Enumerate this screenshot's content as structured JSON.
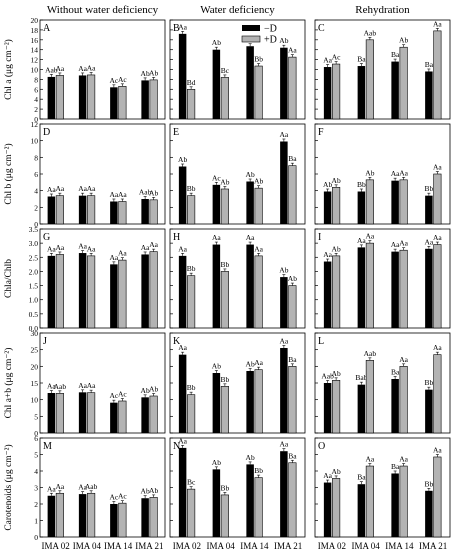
{
  "columns": [
    "Without water deficiency",
    "Water deficiency",
    "Rehydration"
  ],
  "legend": [
    {
      "label": "−D",
      "color": "#000000"
    },
    {
      "label": "+D",
      "color": "#b3b3b3"
    }
  ],
  "categories": [
    "IMA 02",
    "IMA 04",
    "IMA 14",
    "IMA 21"
  ],
  "rows": [
    {
      "ylabel": "Chl a (μg cm⁻²)",
      "ylim": [
        0,
        20
      ],
      "yticks": [
        0,
        2,
        4,
        6,
        8,
        10,
        12,
        14,
        16,
        18,
        20
      ],
      "panels": [
        "A",
        "B",
        "C"
      ]
    },
    {
      "ylabel": "Chl b (μg cm⁻²)",
      "ylim": [
        0,
        12
      ],
      "yticks": [
        0,
        2,
        4,
        6,
        8,
        10,
        12
      ],
      "panels": [
        "D",
        "E",
        "F"
      ]
    },
    {
      "ylabel": "Chla/Chlb",
      "ylim": [
        0,
        3.5
      ],
      "yticks": [
        0.0,
        0.5,
        1.0,
        1.5,
        2.0,
        2.5,
        3.0,
        3.5
      ],
      "panels": [
        "G",
        "H",
        "I"
      ]
    },
    {
      "ylabel": "Chl a+b (μg cm⁻²)",
      "ylim": [
        0,
        30
      ],
      "yticks": [
        0,
        5,
        10,
        15,
        20,
        25,
        30
      ],
      "panels": [
        "J",
        "K",
        "L"
      ]
    },
    {
      "ylabel": "Carotenoids (μg cm⁻²)",
      "ylim": [
        0,
        6
      ],
      "yticks": [
        0,
        1,
        2,
        3,
        4,
        5,
        6
      ],
      "panels": [
        "M",
        "N",
        "O"
      ]
    }
  ],
  "chart_data": [
    {
      "type": "bar",
      "panel": "A",
      "series": [
        {
          "name": "−D",
          "values": [
            8.5,
            8.8,
            6.4,
            7.8
          ],
          "labels": [
            "Aab",
            "Aa",
            "Ac",
            "Ab"
          ]
        },
        {
          "name": "+D",
          "values": [
            8.8,
            8.9,
            6.6,
            7.9
          ],
          "labels": [
            "Aa",
            "Aa",
            "Ac",
            "Ab"
          ]
        }
      ]
    },
    {
      "type": "bar",
      "panel": "B",
      "series": [
        {
          "name": "−D",
          "values": [
            17.2,
            14.0,
            14.7,
            14.4
          ],
          "labels": [
            "Aa",
            "Ab",
            "Ab",
            "Ab"
          ]
        },
        {
          "name": "+D",
          "values": [
            6.0,
            8.4,
            10.7,
            12.5
          ],
          "labels": [
            "Bd",
            "Bc",
            "Bb",
            "Aa"
          ]
        }
      ]
    },
    {
      "type": "bar",
      "panel": "C",
      "series": [
        {
          "name": "−D",
          "values": [
            10.5,
            10.7,
            11.6,
            9.6
          ],
          "labels": [
            "Aa",
            "Ba",
            "Ba",
            "Ba"
          ]
        },
        {
          "name": "+D",
          "values": [
            11.1,
            16.0,
            14.5,
            17.8
          ],
          "labels": [
            "Ac",
            "Aab",
            "Ab",
            "Aa"
          ]
        }
      ]
    },
    {
      "type": "bar",
      "panel": "D",
      "series": [
        {
          "name": "−D",
          "values": [
            3.3,
            3.4,
            2.7,
            3.0
          ],
          "labels": [
            "Aa",
            "Aa",
            "Aa",
            "Aab"
          ]
        },
        {
          "name": "+D",
          "values": [
            3.4,
            3.4,
            2.7,
            2.9
          ],
          "labels": [
            "Aa",
            "Aa",
            "Aa",
            "Ab"
          ]
        }
      ]
    },
    {
      "type": "bar",
      "panel": "E",
      "series": [
        {
          "name": "−D",
          "values": [
            6.9,
            4.7,
            5.1,
            9.9
          ],
          "labels": [
            "Ab",
            "Ac",
            "Ab",
            "Aa"
          ]
        },
        {
          "name": "+D",
          "values": [
            3.4,
            4.2,
            4.3,
            7.0
          ],
          "labels": [
            "Bb",
            "Ab",
            "Ab",
            "Ba"
          ]
        }
      ]
    },
    {
      "type": "bar",
      "panel": "F",
      "series": [
        {
          "name": "−D",
          "values": [
            3.9,
            3.9,
            5.2,
            3.4
          ],
          "labels": [
            "Ab",
            "Bb",
            "Aa",
            "Bb"
          ]
        },
        {
          "name": "+D",
          "values": [
            4.4,
            5.3,
            5.3,
            6.0
          ],
          "labels": [
            "Ab",
            "Ab",
            "Aa",
            "Aa"
          ]
        }
      ]
    },
    {
      "type": "bar",
      "panel": "G",
      "series": [
        {
          "name": "−D",
          "values": [
            2.55,
            2.65,
            2.25,
            2.6
          ],
          "labels": [
            "Aa",
            "Aa",
            "Aa",
            "Aa"
          ]
        },
        {
          "name": "+D",
          "values": [
            2.6,
            2.55,
            2.4,
            2.7
          ],
          "labels": [
            "Aa",
            "Aa",
            "Aa",
            "Aa"
          ]
        }
      ]
    },
    {
      "type": "bar",
      "panel": "H",
      "series": [
        {
          "name": "−D",
          "values": [
            2.55,
            2.95,
            2.95,
            1.8
          ],
          "labels": [
            "Aa",
            "Aa",
            "Aa",
            "Ab"
          ]
        },
        {
          "name": "+D",
          "values": [
            1.85,
            2.0,
            2.55,
            1.5
          ],
          "labels": [
            "Bb",
            "Bb",
            "Aa",
            "Ab"
          ]
        }
      ]
    },
    {
      "type": "bar",
      "panel": "I",
      "series": [
        {
          "name": "−D",
          "values": [
            2.35,
            2.85,
            2.7,
            2.8
          ],
          "labels": [
            "Aa",
            "Aa",
            "Aa",
            "Aa"
          ]
        },
        {
          "name": "+D",
          "values": [
            2.55,
            3.0,
            2.75,
            2.95
          ],
          "labels": [
            "Ab",
            "Aa",
            "Aa",
            "Aa"
          ]
        }
      ]
    },
    {
      "type": "bar",
      "panel": "J",
      "series": [
        {
          "name": "−D",
          "values": [
            12.0,
            12.2,
            9.1,
            10.7
          ],
          "labels": [
            "Aa",
            "Aa",
            "Ac",
            "Ab"
          ]
        },
        {
          "name": "+D",
          "values": [
            11.9,
            12.1,
            9.6,
            11.1
          ],
          "labels": [
            "Aab",
            "Aa",
            "Ac",
            "Ab"
          ]
        }
      ]
    },
    {
      "type": "bar",
      "panel": "K",
      "series": [
        {
          "name": "−D",
          "values": [
            23.5,
            18.0,
            18.6,
            25.5
          ],
          "labels": [
            "Aa",
            "Ab",
            "Ab",
            "Aa"
          ]
        },
        {
          "name": "+D",
          "values": [
            11.5,
            14.0,
            19.0,
            20.0
          ],
          "labels": [
            "Bb",
            "Bb",
            "Aa",
            "Ba"
          ]
        }
      ]
    },
    {
      "type": "bar",
      "panel": "L",
      "series": [
        {
          "name": "−D",
          "values": [
            15.0,
            14.5,
            16.2,
            13.0
          ],
          "labels": [
            "Aab",
            "Bab",
            "Ba",
            "Bb"
          ]
        },
        {
          "name": "+D",
          "values": [
            15.8,
            21.8,
            20.0,
            23.5
          ],
          "labels": [
            "Ab",
            "Aab",
            "Aa",
            "Aa"
          ]
        }
      ]
    },
    {
      "type": "bar",
      "panel": "M",
      "series": [
        {
          "name": "−D",
          "values": [
            2.5,
            2.6,
            2.0,
            2.35
          ],
          "labels": [
            "Aa",
            "Aa",
            "Ac",
            "Ab"
          ]
        },
        {
          "name": "+D",
          "values": [
            2.65,
            2.65,
            2.05,
            2.4
          ],
          "labels": [
            "Aa",
            "Aab",
            "Ac",
            "Ab"
          ]
        }
      ]
    },
    {
      "type": "bar",
      "panel": "N",
      "series": [
        {
          "name": "−D",
          "values": [
            5.4,
            4.1,
            4.4,
            5.2
          ],
          "labels": [
            "Aa",
            "Ab",
            "Ab",
            "Aa"
          ]
        },
        {
          "name": "+D",
          "values": [
            2.9,
            2.55,
            3.6,
            4.5
          ],
          "labels": [
            "Bc",
            "Bb",
            "Bb",
            "Ba"
          ]
        }
      ]
    },
    {
      "type": "bar",
      "panel": "O",
      "series": [
        {
          "name": "−D",
          "values": [
            3.3,
            3.2,
            3.85,
            2.8
          ],
          "labels": [
            "Aa",
            "Ba",
            "Ba",
            "Bb"
          ]
        },
        {
          "name": "+D",
          "values": [
            3.55,
            4.3,
            4.3,
            4.85
          ],
          "labels": [
            "Ab",
            "Aa",
            "Aa",
            "Aa"
          ]
        }
      ]
    }
  ]
}
